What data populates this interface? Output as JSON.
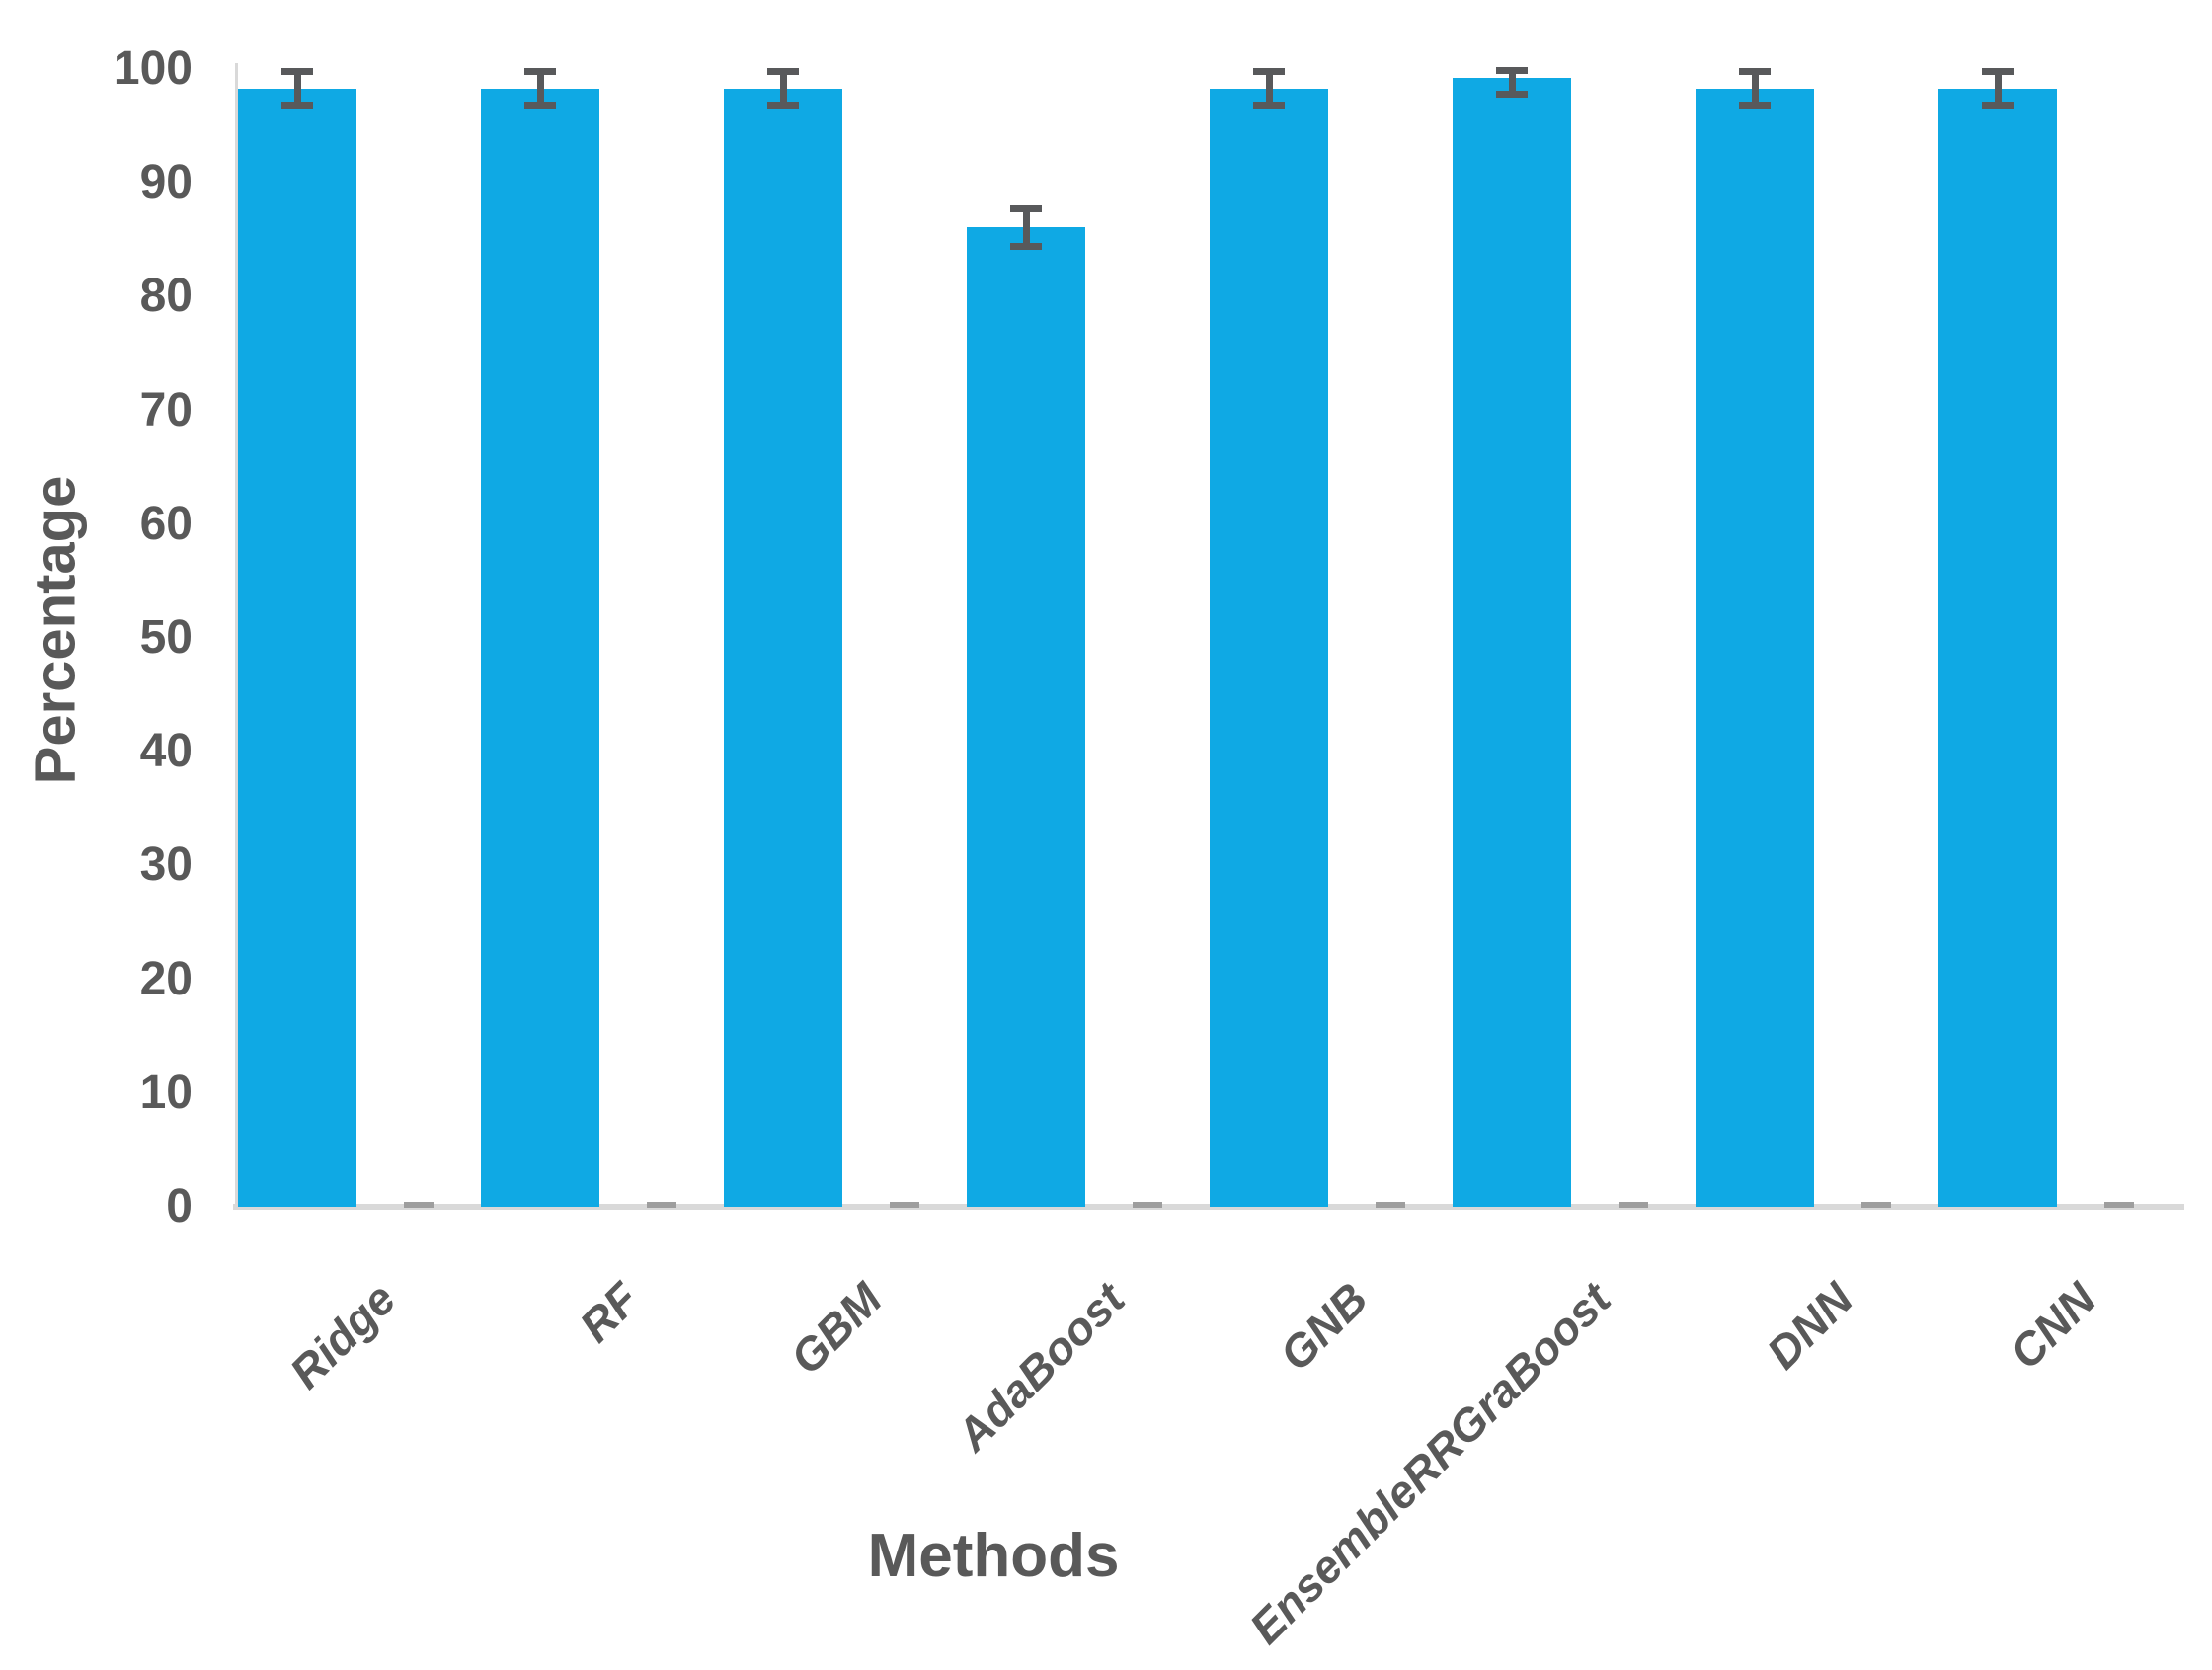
{
  "chart_data": {
    "type": "bar",
    "title": "",
    "xlabel": "Methods",
    "ylabel": "Percentage",
    "categories": [
      "Ridge",
      "RF",
      "GBM",
      "AdaBoost",
      "GNB",
      "EnsembleRRGraBoost",
      "DNN",
      "CNN"
    ],
    "values": [
      98.3,
      98.3,
      98.3,
      86.1,
      98.3,
      99.2,
      98.3,
      98.3
    ],
    "error_plus": [
      1.5,
      1.5,
      1.5,
      1.7,
      1.5,
      0.7,
      1.5,
      1.5
    ],
    "error_minus": [
      1.5,
      1.5,
      1.5,
      1.7,
      1.5,
      1.5,
      1.5,
      1.5
    ],
    "ylim": [
      0,
      100
    ],
    "yticks": [
      0,
      10,
      20,
      30,
      40,
      50,
      60,
      70,
      80,
      90,
      100
    ],
    "grid": "off",
    "legend": "none",
    "bar_color": "#0FA9E4",
    "error_bar_color": "#58595B",
    "axis_line_color": "#D9D9D9",
    "boundary_tick_color": "#9E9E9E",
    "text_color": "#595959"
  }
}
